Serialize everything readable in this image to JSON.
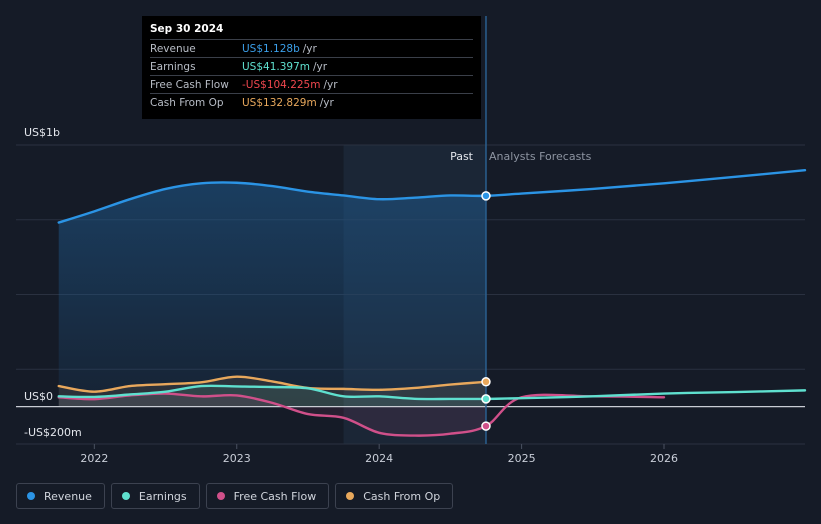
{
  "tooltip": {
    "date": "Sep 30 2024",
    "rows": [
      {
        "label": "Revenue",
        "value": "US$1.128b",
        "unit": "/yr",
        "color": "#3b9fe9"
      },
      {
        "label": "Earnings",
        "value": "US$41.397m",
        "unit": "/yr",
        "color": "#5fe0cf"
      },
      {
        "label": "Free Cash Flow",
        "value": "-US$104.225m",
        "unit": "/yr",
        "color": "#f0474e"
      },
      {
        "label": "Cash From Op",
        "value": "US$132.829m",
        "unit": "/yr",
        "color": "#e8a85c"
      }
    ]
  },
  "legend": [
    {
      "label": "Revenue",
      "color": "#2b94e5"
    },
    {
      "label": "Earnings",
      "color": "#5fe0cf"
    },
    {
      "label": "Free Cash Flow",
      "color": "#d0508a"
    },
    {
      "label": "Cash From Op",
      "color": "#e8a85c"
    }
  ],
  "chart_data": {
    "type": "line",
    "ylabel_top": "US$1b",
    "ylabel_zero": "US$0",
    "ylabel_bottom": "-US$200m",
    "past_label": "Past",
    "forecast_label": "Analysts Forecasts",
    "x_ticks": [
      "2022",
      "2023",
      "2024",
      "2025",
      "2026"
    ],
    "x_tick_values": [
      2022,
      2023,
      2024,
      2025,
      2026
    ],
    "xlim": [
      2021.45,
      2026.99
    ],
    "ylim": [
      -200,
      1400
    ],
    "past_boundary_x": 2024.75,
    "highlight_start_x": 2023.75,
    "grid": true,
    "series": [
      {
        "name": "Revenue",
        "color": "#2b94e5",
        "fill": true,
        "x": [
          2021.75,
          2022.0,
          2022.25,
          2022.5,
          2022.75,
          2023.0,
          2023.25,
          2023.5,
          2023.75,
          2024.0,
          2024.25,
          2024.5,
          2024.75,
          2025.0,
          2025.5,
          2026.0,
          2026.5,
          2026.99
        ],
        "y": [
          985,
          1045,
          1110,
          1165,
          1195,
          1198,
          1180,
          1150,
          1130,
          1110,
          1118,
          1130,
          1128,
          1140,
          1165,
          1195,
          1230,
          1265
        ]
      },
      {
        "name": "Earnings",
        "color": "#5fe0cf",
        "fill": false,
        "x": [
          2021.75,
          2022.0,
          2022.25,
          2022.5,
          2022.75,
          2023.0,
          2023.25,
          2023.5,
          2023.75,
          2024.0,
          2024.25,
          2024.5,
          2024.75,
          2025.0,
          2025.5,
          2026.0,
          2026.5,
          2026.99
        ],
        "y": [
          55,
          52,
          65,
          80,
          110,
          108,
          105,
          98,
          55,
          55,
          42,
          41,
          41.397,
          45,
          55,
          70,
          78,
          87
        ]
      },
      {
        "name": "Free Cash Flow",
        "color": "#d0508a",
        "fill": false,
        "x": [
          2021.75,
          2022.0,
          2022.25,
          2022.5,
          2022.75,
          2023.0,
          2023.25,
          2023.5,
          2023.75,
          2024.0,
          2024.25,
          2024.5,
          2024.75,
          2025.0,
          2025.5,
          2026.0
        ],
        "y": [
          50,
          40,
          60,
          70,
          55,
          60,
          20,
          -40,
          -60,
          -140,
          -155,
          -145,
          -104.225,
          50,
          55,
          50
        ]
      },
      {
        "name": "Cash From Op",
        "color": "#e8a85c",
        "fill": false,
        "x": [
          2021.75,
          2022.0,
          2022.25,
          2022.5,
          2022.75,
          2023.0,
          2023.25,
          2023.5,
          2023.75,
          2024.0,
          2024.25,
          2024.5,
          2024.75
        ],
        "y": [
          110,
          80,
          110,
          120,
          130,
          160,
          135,
          100,
          95,
          90,
          100,
          118,
          132.829
        ]
      }
    ]
  }
}
